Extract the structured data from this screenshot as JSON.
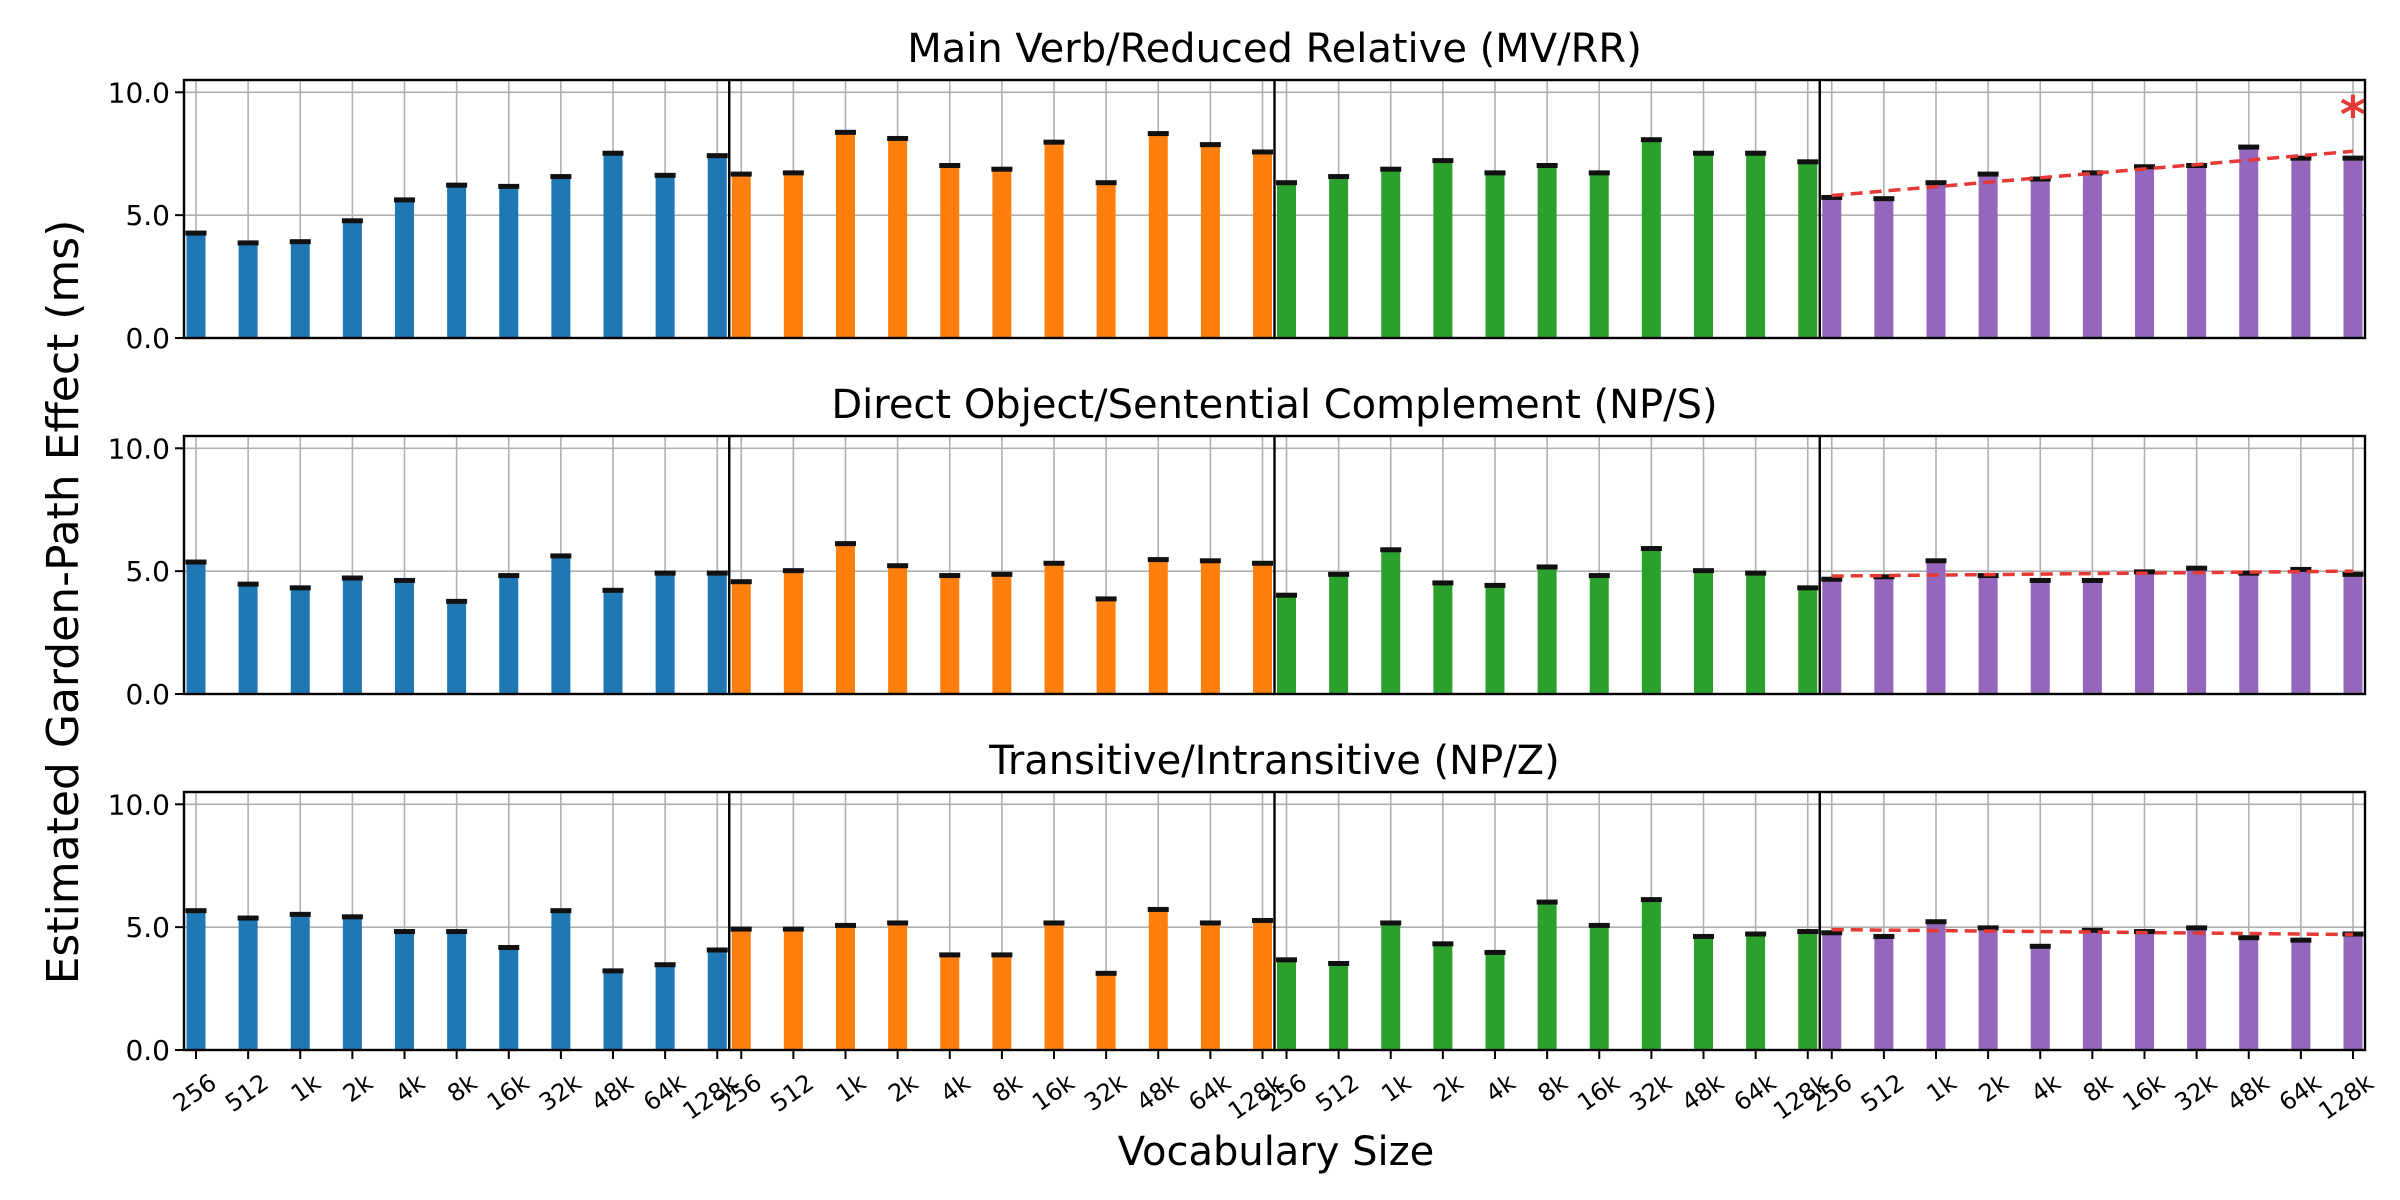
{
  "ylabel": "Estimated Garden-Path Effect (ms)",
  "xlabel": "Vocabulary Size",
  "yticks": [
    "0.0",
    "5.0",
    "10.0"
  ],
  "categories": [
    "256",
    "512",
    "1k",
    "2k",
    "4k",
    "8k",
    "16k",
    "32k",
    "48k",
    "64k",
    "128k"
  ],
  "colors": {
    "group1": "#1f77b4",
    "group2": "#ff7f0e",
    "group3": "#2ca02c",
    "group4": "#9467bd",
    "trend": "#e53935",
    "grid": "#b0b0b0"
  },
  "chart_data": [
    {
      "type": "bar",
      "title": "Main Verb/Reduced Relative (MV/RR)",
      "ylim": [
        0,
        10.5
      ],
      "significance_marker": "*",
      "series": [
        {
          "name": "group1",
          "values": [
            4.25,
            3.85,
            3.9,
            4.75,
            5.6,
            6.2,
            6.15,
            6.55,
            7.5,
            6.6,
            7.4
          ]
        },
        {
          "name": "group2",
          "values": [
            6.65,
            6.7,
            8.35,
            8.1,
            7.0,
            6.85,
            7.95,
            6.3,
            8.3,
            7.85,
            7.55
          ]
        },
        {
          "name": "group3",
          "values": [
            6.3,
            6.55,
            6.85,
            7.2,
            6.7,
            7.0,
            6.7,
            8.05,
            7.5,
            7.5,
            7.15
          ]
        },
        {
          "name": "group4",
          "values": [
            5.7,
            5.65,
            6.3,
            6.65,
            6.45,
            6.7,
            6.95,
            7.0,
            7.75,
            7.3,
            7.3
          ]
        }
      ],
      "trend": {
        "series": "group4",
        "start": 5.8,
        "end": 7.6
      }
    },
    {
      "type": "bar",
      "title": "Direct Object/Sentential Complement (NP/S)",
      "ylim": [
        0,
        10.5
      ],
      "significance_marker": "",
      "series": [
        {
          "name": "group1",
          "values": [
            5.35,
            4.45,
            4.3,
            4.7,
            4.6,
            3.75,
            4.8,
            5.6,
            4.2,
            4.9,
            4.9
          ]
        },
        {
          "name": "group2",
          "values": [
            4.55,
            5.0,
            6.1,
            5.2,
            4.8,
            4.85,
            5.3,
            3.85,
            5.45,
            5.4,
            5.3
          ]
        },
        {
          "name": "group3",
          "values": [
            4.0,
            4.85,
            5.85,
            4.5,
            4.4,
            5.15,
            4.8,
            5.9,
            5.0,
            4.9,
            4.3
          ]
        },
        {
          "name": "group4",
          "values": [
            4.65,
            4.75,
            5.4,
            4.8,
            4.6,
            4.6,
            4.95,
            5.1,
            4.9,
            5.05,
            4.85
          ]
        }
      ],
      "trend": {
        "series": "group4",
        "start": 4.8,
        "end": 5.0
      }
    },
    {
      "type": "bar",
      "title": "Transitive/Intransitive (NP/Z)",
      "ylim": [
        0,
        10.5
      ],
      "significance_marker": "",
      "series": [
        {
          "name": "group1",
          "values": [
            5.65,
            5.35,
            5.5,
            5.4,
            4.8,
            4.8,
            4.15,
            5.65,
            3.2,
            3.45,
            4.05
          ]
        },
        {
          "name": "group2",
          "values": [
            4.9,
            4.9,
            5.05,
            5.15,
            3.85,
            3.85,
            5.15,
            3.1,
            5.7,
            5.15,
            5.25
          ]
        },
        {
          "name": "group3",
          "values": [
            3.65,
            3.5,
            5.15,
            4.3,
            3.95,
            6.0,
            5.05,
            6.1,
            4.6,
            4.7,
            4.8
          ]
        },
        {
          "name": "group4",
          "values": [
            4.75,
            4.6,
            5.2,
            4.95,
            4.2,
            4.85,
            4.8,
            4.95,
            4.55,
            4.45,
            4.7
          ]
        }
      ],
      "trend": {
        "series": "group4",
        "start": 4.9,
        "end": 4.7
      }
    }
  ]
}
